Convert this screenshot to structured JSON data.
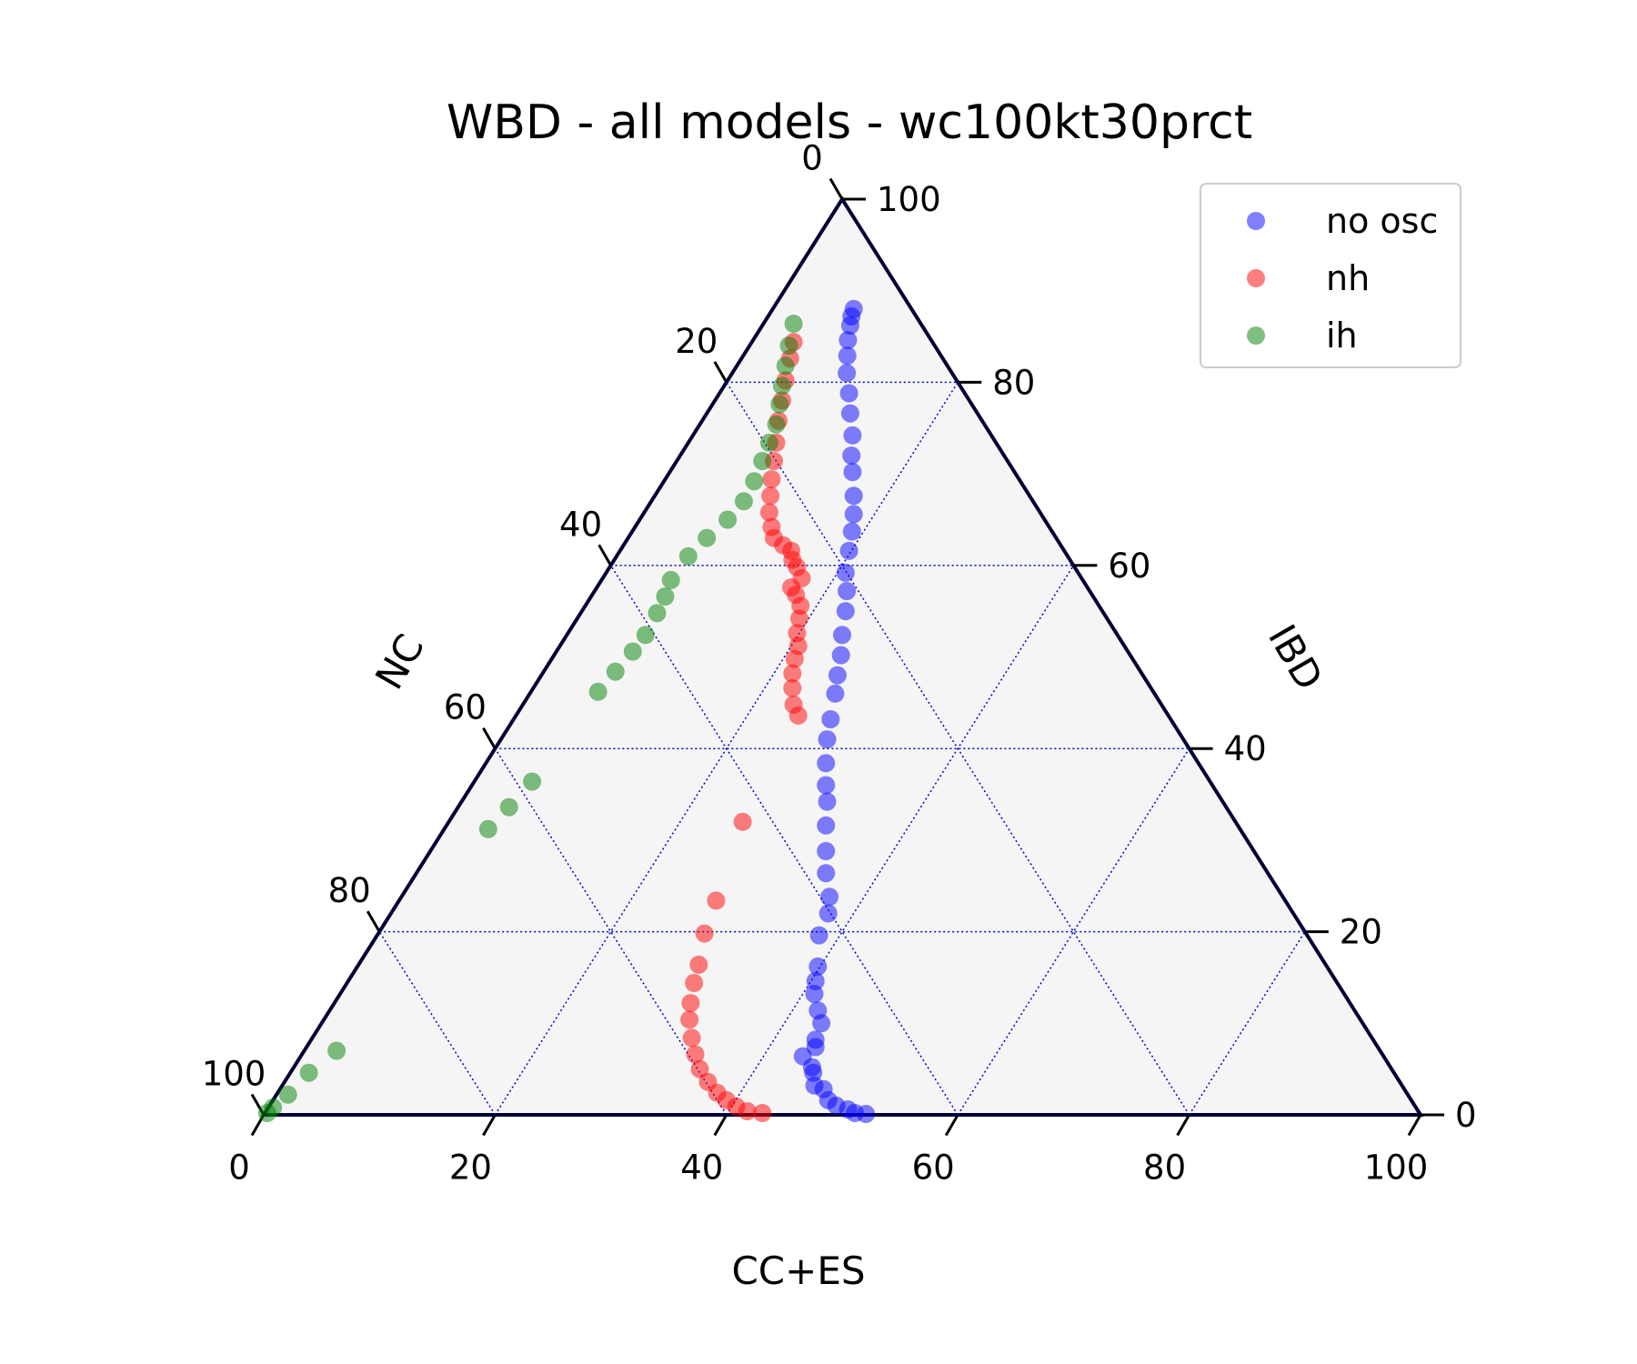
{
  "chart_data": {
    "type": "scatter",
    "subtype": "ternary",
    "title": "WBD - all models - wc100kt30prct",
    "axes": {
      "bottom": {
        "label": "CC+ES",
        "ticks": [
          0,
          20,
          40,
          60,
          80,
          100
        ]
      },
      "right": {
        "label": "IBD",
        "ticks": [
          0,
          20,
          40,
          60,
          80,
          100
        ]
      },
      "left": {
        "label": "NC",
        "ticks": [
          0,
          20,
          40,
          60,
          80,
          100
        ]
      }
    },
    "range": [
      0,
      100
    ],
    "grid": true,
    "grid_step": 20,
    "grid_color": "#0000cc",
    "background_color": "#f5f5f5",
    "legend": {
      "placement": "top-right"
    },
    "series": [
      {
        "name": "no osc",
        "color": "#0000ff",
        "points": [
          [
            7,
            88
          ],
          [
            7.2,
            87.2
          ],
          [
            7.6,
            86.2
          ],
          [
            8.2,
            84.6
          ],
          [
            9,
            82.9
          ],
          [
            9.9,
            81.0
          ],
          [
            11.2,
            78.8
          ],
          [
            12.4,
            76.6
          ],
          [
            13.8,
            74.2
          ],
          [
            14.8,
            72.0
          ],
          [
            15.8,
            70.2
          ],
          [
            17.2,
            67.6
          ],
          [
            18.2,
            65.6
          ],
          [
            19.0,
            63.7
          ],
          [
            19.8,
            61.6
          ],
          [
            20.7,
            59.2
          ],
          [
            21.8,
            57.2
          ],
          [
            22.8,
            55.0
          ],
          [
            23.8,
            52.4
          ],
          [
            24.8,
            50.2
          ],
          [
            25.6,
            48.0
          ],
          [
            26.4,
            46.0
          ],
          [
            27.4,
            43.2
          ],
          [
            28.2,
            41.0
          ],
          [
            29.4,
            38.4
          ],
          [
            30.6,
            36.0
          ],
          [
            31.6,
            34.2
          ],
          [
            32.8,
            31.6
          ],
          [
            34.2,
            28.8
          ],
          [
            35.4,
            26.4
          ],
          [
            37.0,
            23.8
          ],
          [
            37.8,
            22.0
          ],
          [
            38.2,
            19.6
          ],
          [
            39.8,
            16.2
          ],
          [
            40.4,
            14.6
          ],
          [
            41.0,
            13.2
          ],
          [
            42.2,
            11.4
          ],
          [
            43.2,
            10.0
          ],
          [
            43.6,
            8.2
          ],
          [
            44.0,
            7.4
          ],
          [
            43.4,
            6.4
          ],
          [
            44.8,
            5.2
          ],
          [
            45.2,
            4.6
          ],
          [
            46.0,
            3.2
          ],
          [
            47.0,
            2.8
          ],
          [
            48.0,
            1.6
          ],
          [
            49.0,
            1.0
          ],
          [
            50.2,
            0.6
          ],
          [
            51.0,
            0.2
          ],
          [
            52.0,
            0.1
          ]
        ]
      },
      {
        "name": "nh",
        "color": "#ff0000",
        "points": [
          [
            3.6,
            84.4
          ],
          [
            4.2,
            82.6
          ],
          [
            5.0,
            80.2
          ],
          [
            5.8,
            78.0
          ],
          [
            6.6,
            75.8
          ],
          [
            7.6,
            73.4
          ],
          [
            8.4,
            71.4
          ],
          [
            9.2,
            69.4
          ],
          [
            10.0,
            67.6
          ],
          [
            10.8,
            65.8
          ],
          [
            11.8,
            64.2
          ],
          [
            12.6,
            63.0
          ],
          [
            13.8,
            62.2
          ],
          [
            14.8,
            61.6
          ],
          [
            15.4,
            60.6
          ],
          [
            16.2,
            59.8
          ],
          [
            17.2,
            58.6
          ],
          [
            16.8,
            57.6
          ],
          [
            17.6,
            56.8
          ],
          [
            18.6,
            55.6
          ],
          [
            19.2,
            54.2
          ],
          [
            19.8,
            52.6
          ],
          [
            20.6,
            51.2
          ],
          [
            21.0,
            49.8
          ],
          [
            21.6,
            48.2
          ],
          [
            22.4,
            46.6
          ],
          [
            23.4,
            44.8
          ],
          [
            24.4,
            43.6
          ],
          [
            25.4,
            32.0
          ],
          [
            27.4,
            23.4
          ],
          [
            28.2,
            19.8
          ],
          [
            29.4,
            16.4
          ],
          [
            30.0,
            14.4
          ],
          [
            30.8,
            12.2
          ],
          [
            31.6,
            10.4
          ],
          [
            32.8,
            8.4
          ],
          [
            34.0,
            6.6
          ],
          [
            35.2,
            5.0
          ],
          [
            36.6,
            3.6
          ],
          [
            38.0,
            2.4
          ],
          [
            39.2,
            1.6
          ],
          [
            40.4,
            0.9
          ],
          [
            41.6,
            0.4
          ],
          [
            43.0,
            0.2
          ]
        ]
      },
      {
        "name": "ih",
        "color": "#008000",
        "points": [
          [
            2.6,
            86.4
          ],
          [
            3.4,
            84.0
          ],
          [
            4.2,
            81.8
          ],
          [
            5.0,
            79.6
          ],
          [
            5.8,
            77.6
          ],
          [
            6.6,
            75.4
          ],
          [
            7.0,
            73.4
          ],
          [
            7.4,
            71.4
          ],
          [
            7.8,
            69.2
          ],
          [
            8.0,
            67.0
          ],
          [
            7.6,
            65.0
          ],
          [
            6.8,
            63.0
          ],
          [
            6.2,
            61.0
          ],
          [
            6.0,
            58.4
          ],
          [
            6.4,
            56.6
          ],
          [
            6.6,
            54.8
          ],
          [
            6.8,
            52.4
          ],
          [
            6.6,
            50.6
          ],
          [
            6.2,
            48.4
          ],
          [
            5.8,
            46.2
          ],
          [
            5.0,
            36.4
          ],
          [
            4.4,
            33.6
          ],
          [
            3.8,
            31.2
          ],
          [
            2.8,
            7.0
          ],
          [
            1.6,
            4.6
          ],
          [
            1.0,
            2.2
          ],
          [
            0.4,
            0.8
          ],
          [
            0.2,
            0.2
          ]
        ]
      }
    ]
  }
}
